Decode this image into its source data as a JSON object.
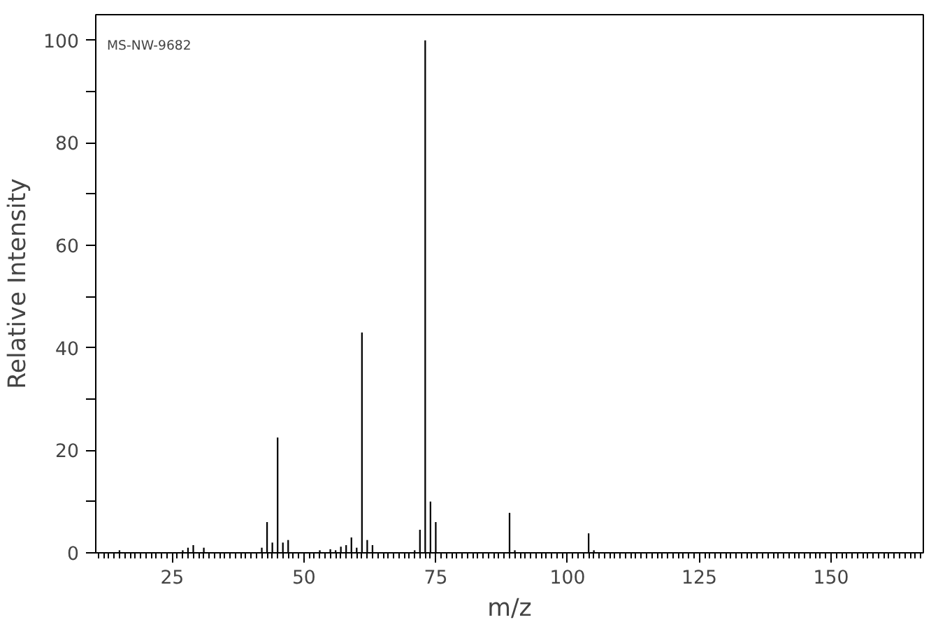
{
  "chart_data": {
    "type": "bar",
    "xlabel": "m/z",
    "ylabel": "Relative Intensity",
    "annotations": [
      "MS-NW-9682"
    ],
    "x": [
      15,
      27,
      28,
      29,
      31,
      42,
      43,
      44,
      45,
      46,
      47,
      53,
      55,
      56,
      57,
      58,
      59,
      60,
      61,
      62,
      63,
      71,
      72,
      73,
      74,
      75,
      89,
      90,
      104,
      105
    ],
    "values": [
      0.5,
      0.5,
      1,
      1.5,
      1,
      1,
      6,
      2,
      22.5,
      2,
      2.5,
      0.5,
      0.7,
      0.5,
      1.2,
      1.5,
      3,
      1,
      43,
      2.5,
      1.5,
      0.5,
      4.5,
      100,
      10,
      6,
      7.8,
      0.5,
      3.8,
      0.5
    ],
    "color": "#000000",
    "xlim": [
      10.5,
      167.5
    ],
    "xticks": [
      25,
      50,
      75,
      100,
      125,
      150
    ],
    "ylim": [
      0,
      105
    ],
    "yticks": [
      0,
      {
        "value": 10,
        "label": null
      },
      20,
      {
        "value": 30,
        "label": null
      },
      40,
      {
        "value": 50,
        "label": null
      },
      60,
      {
        "value": 70,
        "label": null
      },
      80,
      {
        "value": 90,
        "label": null
      },
      100
    ],
    "grid": false
  }
}
